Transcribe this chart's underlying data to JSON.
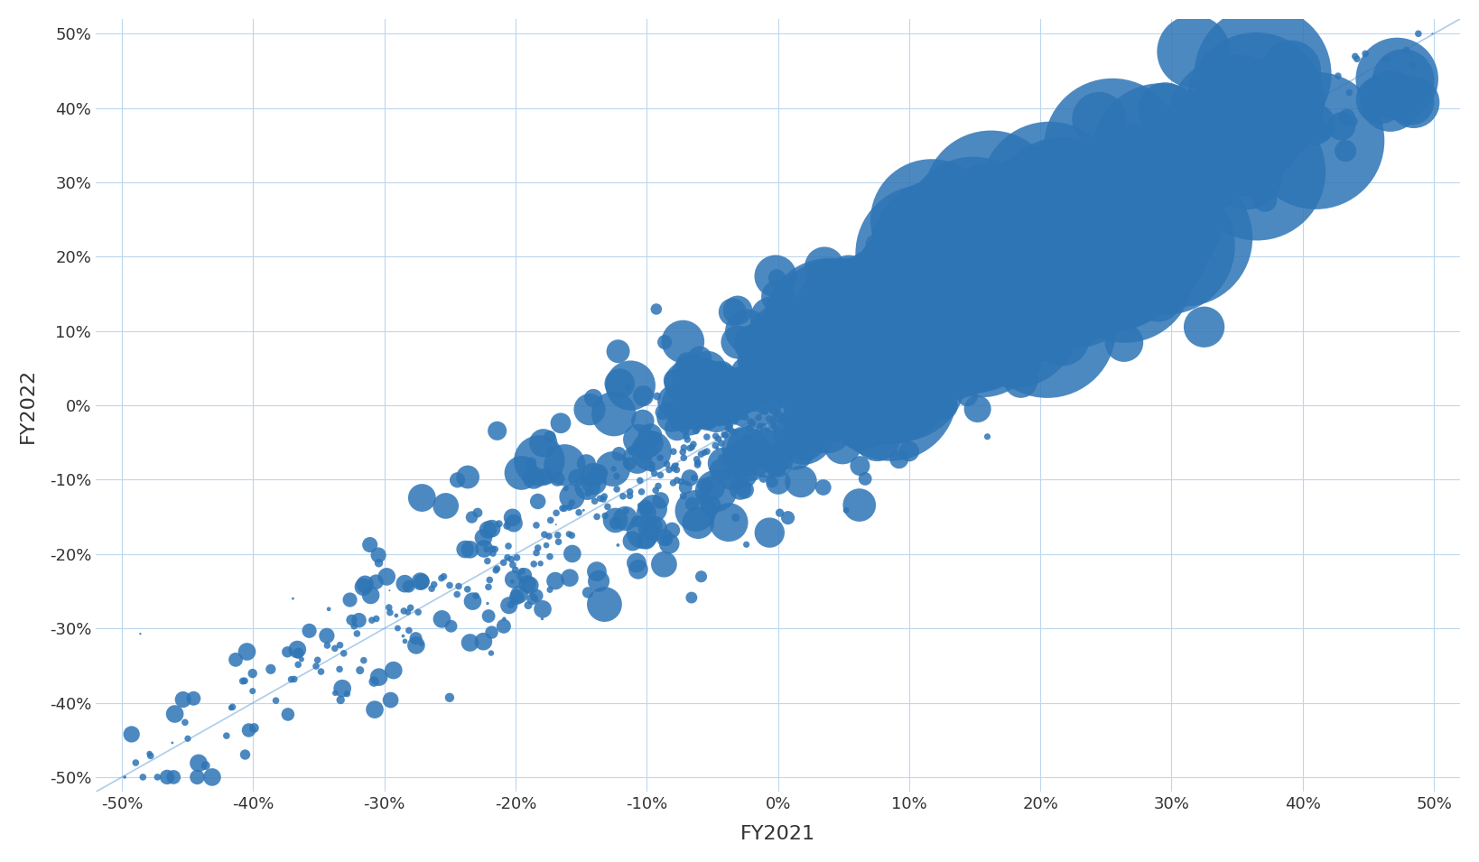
{
  "title": "",
  "xlabel": "FY2021",
  "ylabel": "FY2022",
  "xlim": [
    -0.52,
    0.52
  ],
  "ylim": [
    -0.52,
    0.52
  ],
  "xticks": [
    -0.5,
    -0.4,
    -0.3,
    -0.2,
    -0.1,
    0.0,
    0.1,
    0.2,
    0.3,
    0.4,
    0.5
  ],
  "yticks": [
    -0.5,
    -0.4,
    -0.3,
    -0.2,
    -0.1,
    0.0,
    0.1,
    0.2,
    0.3,
    0.4,
    0.5
  ],
  "bubble_color": "#2E75B6",
  "bubble_alpha": 0.85,
  "line_color": "#5B9BD5",
  "line_alpha": 0.5,
  "background_color": "#ffffff",
  "grid_color": "#BDD7EE",
  "axis_label_fontsize": 16,
  "tick_fontsize": 13,
  "figsize": [
    16.38,
    9.55
  ],
  "dpi": 100,
  "seed": 42
}
